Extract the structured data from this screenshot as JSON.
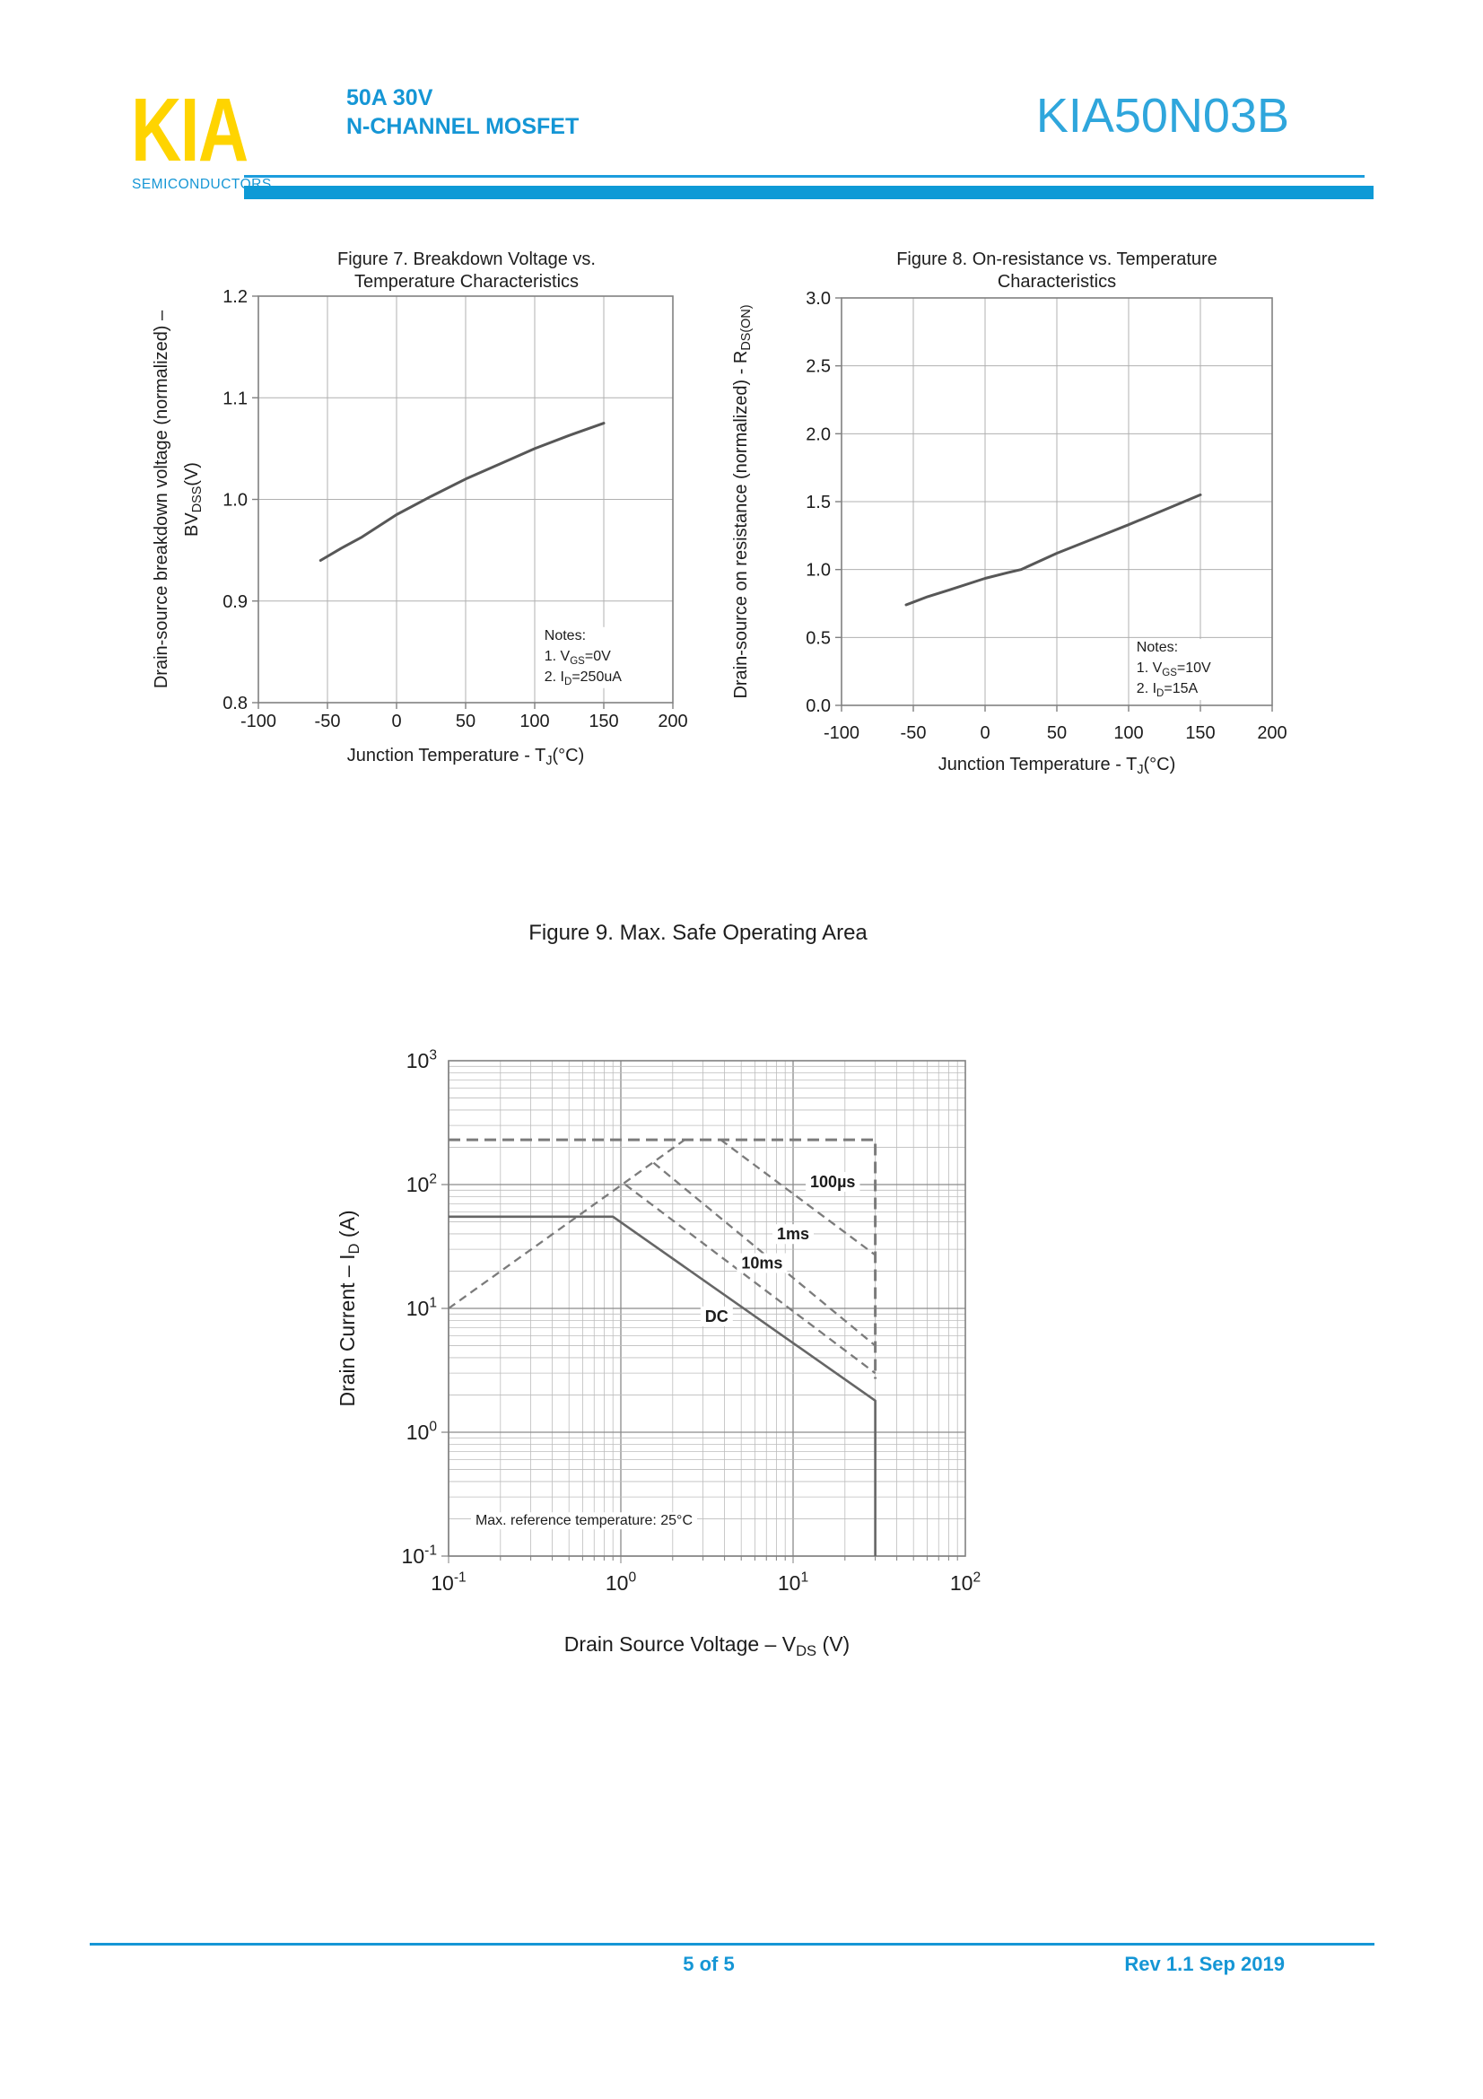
{
  "header": {
    "logo_text": "KIA",
    "logo_subtext": "SEMICONDUCTORS",
    "subtitle_line1": "50A 30V",
    "subtitle_line2": "N-CHANNEL MOSFET",
    "part_number": "KIA50N03B"
  },
  "footer": {
    "page_indicator": "5 of 5",
    "revision": "Rev 1.1 Sep 2019"
  },
  "colors": {
    "accent_blue": "#1596d5",
    "part_number_blue": "#2fa6dc",
    "bar_blue": "#0e9ad6",
    "rule_blue": "#1d9ddd",
    "logo_yellow": "#ffd400",
    "chart_ink": "#1c1c1c",
    "curve_gray": "#575757",
    "grid_gray": "#b0b0b0",
    "border_gray": "#808080",
    "dashed_gray": "#7b7b7b"
  },
  "chart_data": [
    {
      "id": "figure7",
      "type": "line",
      "title_line1": "Figure 7. Breakdown Voltage vs.",
      "title_line2": "Temperature Characteristics",
      "xlabel_rich": [
        {
          "t": "Junction Temperature - T"
        },
        {
          "s": "J"
        },
        {
          "t": "(°C)"
        }
      ],
      "ylabel_lines_rich": [
        [
          {
            "t": "Drain-source breakdown voltage (normalized)  –"
          }
        ],
        [
          {
            "t": "BV"
          },
          {
            "s": "DSS"
          },
          {
            "t": "(V)"
          }
        ]
      ],
      "xlim": [
        -100,
        200
      ],
      "ylim": [
        0.8,
        1.2
      ],
      "xtick_values": [
        -100,
        -50,
        0,
        50,
        100,
        150,
        200
      ],
      "xtick_labels": [
        "-100",
        "-50",
        "0",
        "50",
        "100",
        "150",
        "200"
      ],
      "ytick_values": [
        1.2,
        1.1,
        1.0,
        0.9,
        0.8
      ],
      "ytick_labels": [
        "1.2",
        "1.1",
        "1.0",
        "0.9",
        "0.8"
      ],
      "grid": true,
      "series": [
        {
          "name": "breakdown-voltage-normalized",
          "x": [
            -55,
            -40,
            -25,
            0,
            25,
            50,
            75,
            100,
            125,
            150
          ],
          "y": [
            0.94,
            0.952,
            0.963,
            0.985,
            1.003,
            1.02,
            1.035,
            1.05,
            1.063,
            1.075
          ]
        }
      ],
      "notes_rich": [
        [
          {
            "t": "Notes:"
          }
        ],
        [
          {
            "t": "1. V"
          },
          {
            "s": "GS"
          },
          {
            "t": "=0V"
          }
        ],
        [
          {
            "t": "2. I"
          },
          {
            "s": "D"
          },
          {
            "t": "=250uA"
          }
        ]
      ],
      "notes_pos": {
        "fx": 0.69,
        "fy": 0.845
      }
    },
    {
      "id": "figure8",
      "type": "line",
      "title_line1": "Figure 8. On-resistance vs. Temperature",
      "title_line2": "Characteristics",
      "xlabel_rich": [
        {
          "t": "Junction Temperature - T"
        },
        {
          "s": "J"
        },
        {
          "t": "(°C)"
        }
      ],
      "ylabel_lines_rich": [
        [
          {
            "t": "Drain-source on resistance (normalized) - R"
          },
          {
            "s": "DS(ON)"
          }
        ]
      ],
      "xlim": [
        -100,
        200
      ],
      "ylim": [
        0,
        3
      ],
      "xtick_values": [
        -100,
        -50,
        0,
        50,
        100,
        150,
        200
      ],
      "xtick_labels": [
        "-100",
        "-50",
        "0",
        "50",
        "100",
        "150",
        "200"
      ],
      "ytick_values": [
        3.0,
        2.5,
        2.0,
        1.5,
        1.0,
        0.5,
        0.0
      ],
      "ytick_labels": [
        "3.0",
        "2.5",
        "2.0",
        "1.5",
        "1.0",
        "0.5",
        "0.0"
      ],
      "grid": true,
      "series": [
        {
          "name": "rdson-normalized",
          "x": [
            -55,
            -40,
            -25,
            0,
            15,
            25,
            50,
            75,
            100,
            125,
            150
          ],
          "y": [
            0.74,
            0.8,
            0.85,
            0.935,
            0.975,
            1.0,
            1.12,
            1.225,
            1.33,
            1.44,
            1.55
          ]
        }
      ],
      "notes_rich": [
        [
          {
            "t": "Notes:"
          }
        ],
        [
          {
            "t": "1. V"
          },
          {
            "s": "GS"
          },
          {
            "t": "=10V"
          }
        ],
        [
          {
            "t": "2. I"
          },
          {
            "s": "D"
          },
          {
            "t": "=15A"
          }
        ]
      ],
      "notes_pos": {
        "fx": 0.685,
        "fy": 0.868
      }
    },
    {
      "id": "figure9",
      "type": "line",
      "scale": "log-log",
      "title": "Figure 9. Max. Safe Operating Area",
      "xlabel_rich": [
        {
          "t": "Drain Source Voltage  –  V"
        },
        {
          "s": "DS"
        },
        {
          "t": " (V)"
        }
      ],
      "ylabel_rich": [
        {
          "t": "Drain Current  –  I"
        },
        {
          "s": "D"
        },
        {
          "t": " (A)"
        }
      ],
      "xlim": [
        0.1,
        100
      ],
      "ylim": [
        0.1,
        1000
      ],
      "xtick_exponents": [
        -1,
        0,
        1,
        2
      ],
      "ytick_exponents": [
        3,
        2,
        1,
        0,
        -1
      ],
      "grid": "log-minor",
      "traces": [
        {
          "name": "pulsed-drain-current-limit",
          "style": "dashed",
          "width": 3,
          "points": [
            [
              0.1,
              230
            ],
            [
              30,
              230
            ],
            [
              30,
              2.7
            ]
          ]
        },
        {
          "name": "rdson-limit-line",
          "style": "dashed",
          "width": 2.3,
          "points": [
            [
              0.1,
              10
            ],
            [
              2.35,
              230
            ]
          ]
        },
        {
          "name": "thermal-limit-100us",
          "style": "dashed",
          "width": 2.3,
          "points": [
            [
              3.8,
              230
            ],
            [
              30,
              27
            ]
          ]
        },
        {
          "name": "thermal-limit-1ms",
          "style": "dashed",
          "width": 2.3,
          "points": [
            [
              1.55,
              150
            ],
            [
              30,
              5
            ]
          ]
        },
        {
          "name": "thermal-limit-10ms",
          "style": "dashed",
          "width": 2.3,
          "points": [
            [
              1.06,
              100
            ],
            [
              30,
              3
            ]
          ]
        },
        {
          "name": "dc-limit",
          "style": "solid",
          "width": 2.6,
          "points": [
            [
              0.1,
              55
            ],
            [
              0.9,
              55
            ],
            [
              30,
              1.8
            ],
            [
              30,
              0.1
            ]
          ]
        }
      ],
      "curve_labels": [
        {
          "text": "100µs",
          "x": 17,
          "y": 95
        },
        {
          "text": "1ms",
          "x": 10,
          "y": 36
        },
        {
          "text": "10ms",
          "x": 6.6,
          "y": 21
        },
        {
          "text": "DC",
          "x": 3.6,
          "y": 7.8
        }
      ],
      "annotation": {
        "text": "Max. reference temperature: 25°C",
        "fx": 0.052,
        "fy": 0.937
      }
    }
  ]
}
